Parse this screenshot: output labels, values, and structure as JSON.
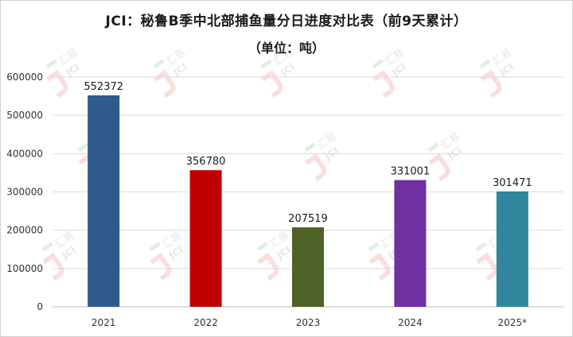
{
  "chart_data": {
    "type": "bar",
    "title": "JCI：秘鲁B季中北部捕鱼量分日进度对比表（前9天累计）",
    "subtitle": "（单位：吨）",
    "categories": [
      "2021",
      "2022",
      "2023",
      "2024",
      "2025*"
    ],
    "values": [
      552372,
      356780,
      207519,
      331001,
      301471
    ],
    "colors": [
      "#2f5b8c",
      "#c00000",
      "#4f6228",
      "#7030a0",
      "#31859c"
    ],
    "ylim": [
      0,
      600000
    ],
    "yticks": [
      0,
      100000,
      200000,
      300000,
      400000,
      500000,
      600000
    ],
    "grid": true,
    "watermark": "汇易 JCI"
  }
}
